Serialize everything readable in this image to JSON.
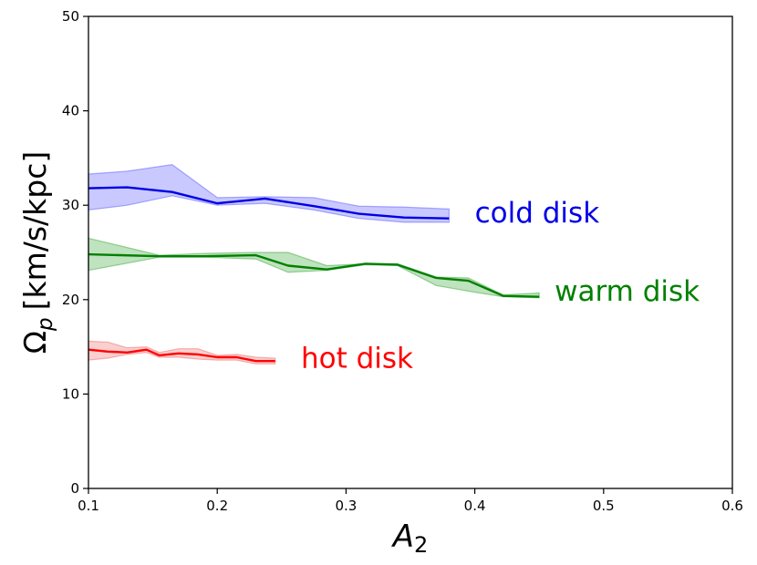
{
  "chart_data": {
    "type": "line",
    "xlabel": "A",
    "xlabel_sub": "2",
    "ylabel": "Ω",
    "ylabel_sub": "p",
    "ylabel_units": "[km/s/kpc]",
    "xlim": [
      0.1,
      0.6
    ],
    "ylim": [
      0,
      50
    ],
    "xticks": [
      0.1,
      0.2,
      0.3,
      0.4,
      0.5,
      0.6
    ],
    "xtick_labels": [
      "0.1",
      "0.2",
      "0.3",
      "0.4",
      "0.5",
      "0.6"
    ],
    "yticks": [
      0,
      10,
      20,
      30,
      40,
      50
    ],
    "ytick_labels": [
      "0",
      "10",
      "20",
      "30",
      "40",
      "50"
    ],
    "grid": false,
    "series": [
      {
        "name": "cold disk",
        "label": "cold disk",
        "color": "#0000e6",
        "fill_color": "#4d4dff",
        "label_at": [
          0.4,
          28.2
        ],
        "x": [
          0.1,
          0.13,
          0.165,
          0.2,
          0.237,
          0.275,
          0.31,
          0.345,
          0.38
        ],
        "y": [
          31.8,
          31.9,
          31.4,
          30.2,
          30.7,
          29.9,
          29.1,
          28.7,
          28.6
        ],
        "lower": [
          29.5,
          30.0,
          31.0,
          30.0,
          30.2,
          29.5,
          28.6,
          28.2,
          28.2
        ],
        "upper": [
          33.3,
          33.6,
          34.3,
          30.8,
          30.9,
          30.8,
          29.9,
          29.8,
          29.6
        ]
      },
      {
        "name": "warm disk",
        "label": "warm disk",
        "color": "#008000",
        "fill_color": "#2ca02c",
        "label_at": [
          0.462,
          19.9
        ],
        "x": [
          0.1,
          0.155,
          0.19,
          0.23,
          0.255,
          0.285,
          0.315,
          0.34,
          0.37,
          0.395,
          0.422,
          0.45
        ],
        "y": [
          24.8,
          24.6,
          24.6,
          24.7,
          23.6,
          23.2,
          23.8,
          23.7,
          22.3,
          22.0,
          20.4,
          20.3
        ],
        "lower": [
          23.1,
          24.5,
          24.5,
          24.3,
          22.9,
          23.1,
          23.7,
          23.6,
          21.5,
          20.9,
          20.3,
          20.2
        ],
        "upper": [
          26.5,
          24.7,
          24.9,
          25.0,
          25.0,
          23.6,
          23.8,
          23.8,
          22.4,
          22.3,
          20.5,
          20.7
        ]
      },
      {
        "name": "hot disk",
        "label": "hot disk",
        "color": "#ff0000",
        "fill_color": "#f06060",
        "label_at": [
          0.265,
          12.8
        ],
        "x": [
          0.1,
          0.115,
          0.13,
          0.145,
          0.155,
          0.17,
          0.185,
          0.2,
          0.215,
          0.23,
          0.245
        ],
        "y": [
          14.7,
          14.5,
          14.4,
          14.7,
          14.1,
          14.3,
          14.2,
          13.9,
          13.9,
          13.5,
          13.5
        ],
        "lower": [
          13.6,
          13.8,
          14.2,
          14.4,
          13.9,
          13.9,
          13.7,
          13.6,
          13.6,
          13.2,
          13.2
        ],
        "upper": [
          15.6,
          15.5,
          14.9,
          15.0,
          14.4,
          14.8,
          14.8,
          14.1,
          14.2,
          13.9,
          13.8
        ]
      }
    ]
  }
}
